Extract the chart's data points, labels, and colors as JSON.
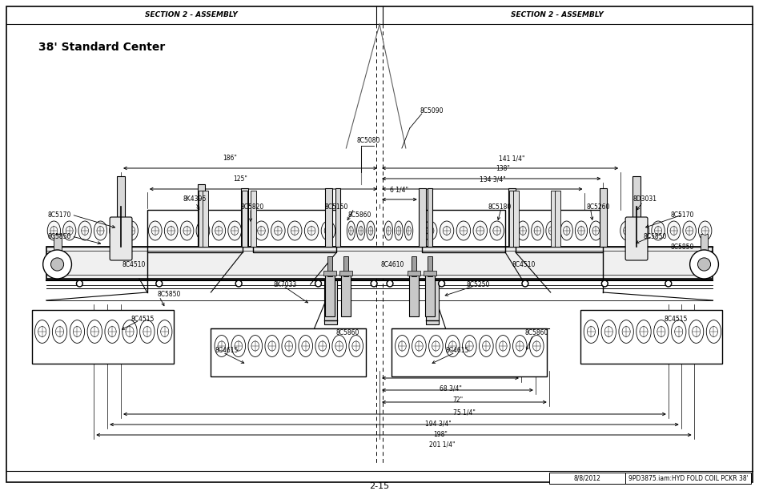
{
  "title": "38' Standard Center",
  "header_left": "SECTION 2 - ASSEMBLY",
  "header_right": "SECTION 2 - ASSEMBLY",
  "footer_page": "2-15",
  "footer_date": "8/8/2012",
  "footer_doc": "9PD3875.iam:HYD FOLD COIL PCKR 38'",
  "bg_color": "#ffffff",
  "border_color": "#000000",
  "fig_width": 9.54,
  "fig_height": 6.18,
  "dpi": 100
}
